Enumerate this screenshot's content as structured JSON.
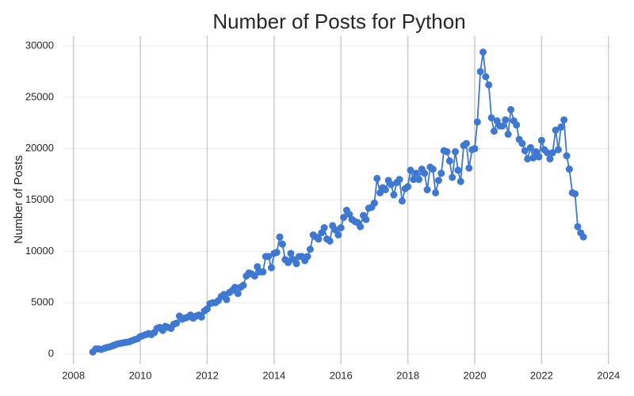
{
  "chart_data": {
    "type": "line",
    "title": "Number of Posts for Python",
    "y_label": "Number of Posts",
    "x": [
      2008.58,
      2008.67,
      2008.75,
      2008.83,
      2008.92,
      2009.0,
      2009.08,
      2009.17,
      2009.25,
      2009.33,
      2009.42,
      2009.5,
      2009.58,
      2009.67,
      2009.75,
      2009.83,
      2009.92,
      2010.0,
      2010.08,
      2010.17,
      2010.25,
      2010.33,
      2010.42,
      2010.5,
      2010.58,
      2010.67,
      2010.75,
      2010.83,
      2010.92,
      2011.0,
      2011.08,
      2011.17,
      2011.25,
      2011.33,
      2011.42,
      2011.5,
      2011.58,
      2011.67,
      2011.75,
      2011.83,
      2011.92,
      2012.0,
      2012.08,
      2012.17,
      2012.25,
      2012.33,
      2012.42,
      2012.5,
      2012.58,
      2012.67,
      2012.75,
      2012.83,
      2012.92,
      2013.0,
      2013.08,
      2013.17,
      2013.25,
      2013.33,
      2013.42,
      2013.5,
      2013.58,
      2013.67,
      2013.75,
      2013.83,
      2013.92,
      2014.0,
      2014.08,
      2014.17,
      2014.25,
      2014.33,
      2014.42,
      2014.5,
      2014.58,
      2014.67,
      2014.75,
      2014.83,
      2014.92,
      2015.0,
      2015.08,
      2015.17,
      2015.25,
      2015.33,
      2015.42,
      2015.5,
      2015.58,
      2015.67,
      2015.75,
      2015.83,
      2015.92,
      2016.0,
      2016.08,
      2016.17,
      2016.25,
      2016.33,
      2016.42,
      2016.5,
      2016.58,
      2016.67,
      2016.75,
      2016.83,
      2016.92,
      2017.0,
      2017.08,
      2017.17,
      2017.25,
      2017.33,
      2017.42,
      2017.5,
      2017.58,
      2017.67,
      2017.75,
      2017.83,
      2017.92,
      2018.0,
      2018.08,
      2018.17,
      2018.25,
      2018.33,
      2018.42,
      2018.5,
      2018.58,
      2018.67,
      2018.75,
      2018.83,
      2018.92,
      2019.0,
      2019.08,
      2019.17,
      2019.25,
      2019.33,
      2019.42,
      2019.5,
      2019.58,
      2019.67,
      2019.75,
      2019.83,
      2019.92,
      2020.0,
      2020.08,
      2020.17,
      2020.25,
      2020.33,
      2020.42,
      2020.5,
      2020.58,
      2020.67,
      2020.75,
      2020.83,
      2020.92,
      2021.0,
      2021.08,
      2021.17,
      2021.25,
      2021.33,
      2021.42,
      2021.5,
      2021.58,
      2021.67,
      2021.75,
      2021.83,
      2021.92,
      2022.0,
      2022.08,
      2022.17,
      2022.25,
      2022.33,
      2022.42,
      2022.5,
      2022.58,
      2022.67,
      2022.75,
      2022.83,
      2022.92,
      2023.0,
      2023.08,
      2023.17,
      2023.25
    ],
    "series": [
      {
        "name": "Python",
        "color": "#3f78d1",
        "values": [
          200,
          500,
          500,
          450,
          550,
          650,
          700,
          800,
          900,
          1000,
          1050,
          1100,
          1150,
          1200,
          1300,
          1400,
          1500,
          1700,
          1800,
          1900,
          2000,
          1900,
          2100,
          2500,
          2600,
          2300,
          2700,
          2600,
          2500,
          2900,
          3000,
          3700,
          3400,
          3500,
          3600,
          3800,
          3500,
          3700,
          3800,
          3600,
          4200,
          4400,
          4900,
          5000,
          5000,
          5200,
          5600,
          5800,
          5300,
          6000,
          6200,
          6500,
          5900,
          6500,
          6700,
          7600,
          7900,
          7800,
          7600,
          8500,
          8000,
          8000,
          9500,
          9500,
          8400,
          9800,
          9900,
          11400,
          10700,
          9200,
          8900,
          9800,
          9200,
          8800,
          9500,
          9500,
          9100,
          9500,
          10200,
          11600,
          11400,
          11200,
          11800,
          12300,
          11200,
          11000,
          12500,
          12100,
          11600,
          12300,
          13300,
          14000,
          13600,
          13100,
          12900,
          12800,
          12400,
          13500,
          13100,
          14200,
          14300,
          14700,
          17100,
          15700,
          16200,
          16000,
          16900,
          16500,
          15500,
          16700,
          17000,
          14900,
          16100,
          16300,
          17900,
          17000,
          17600,
          17000,
          18000,
          17600,
          16000,
          18200,
          18000,
          15700,
          16900,
          17600,
          19800,
          19700,
          18800,
          17200,
          19700,
          17900,
          16800,
          20300,
          20500,
          18100,
          19900,
          20000,
          22600,
          27500,
          29400,
          27000,
          26200,
          23000,
          21700,
          22700,
          22200,
          22200,
          22800,
          21400,
          23800,
          22700,
          22300,
          20900,
          20500,
          19800,
          19000,
          20100,
          19100,
          19700,
          19200,
          20800,
          19900,
          19600,
          19000,
          19600,
          21800,
          19900,
          22100,
          22800,
          19300,
          18000,
          15700,
          15600,
          12400,
          11800,
          11400
        ]
      }
    ],
    "xlim": [
      2007.7,
      2024.1
    ],
    "xticks": [
      2008,
      2010,
      2012,
      2014,
      2016,
      2018,
      2020,
      2022,
      2024
    ],
    "ylim": [
      -1000,
      31000
    ],
    "yticks": [
      0,
      5000,
      10000,
      15000,
      20000,
      25000,
      30000
    ],
    "grid": true
  }
}
